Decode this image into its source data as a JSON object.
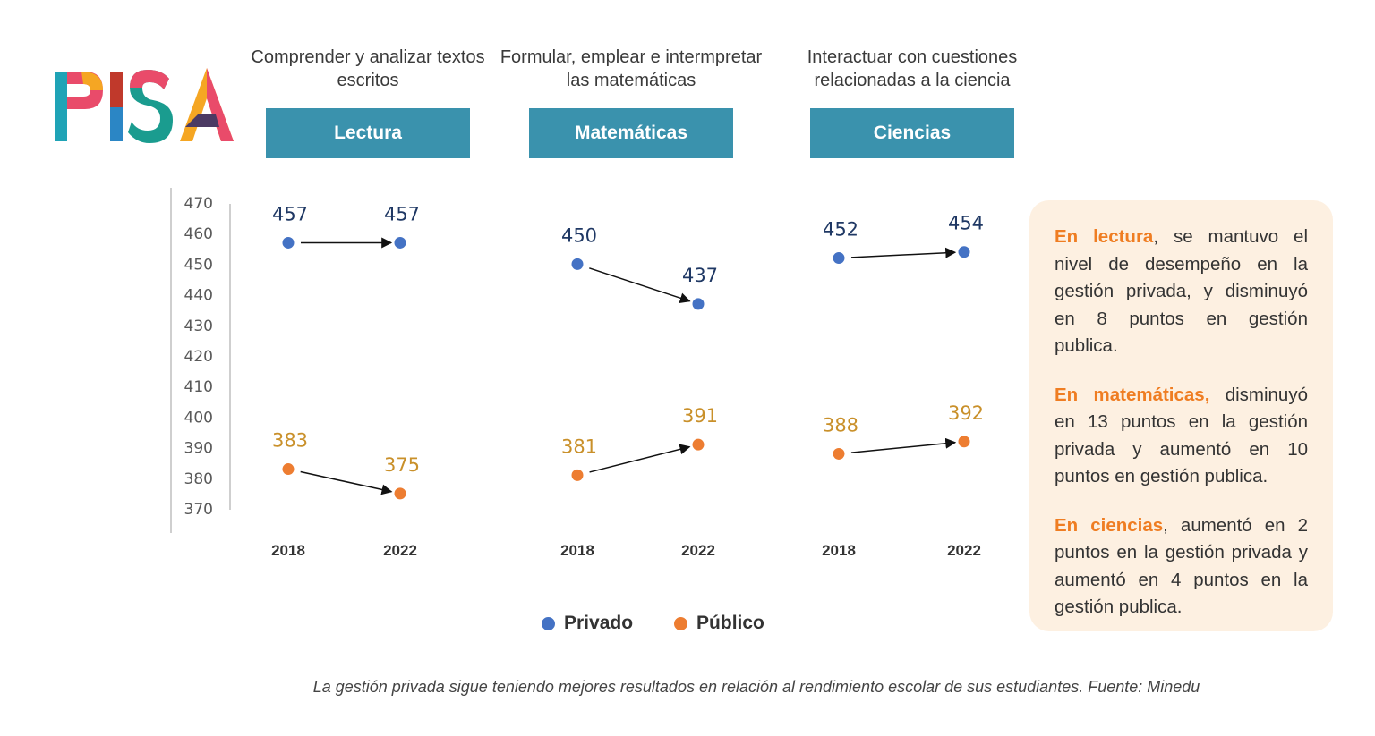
{
  "logo": {
    "text": "PISA"
  },
  "subjects": [
    {
      "description": "Comprender y analizar textos escritos",
      "header": "Lectura"
    },
    {
      "description": "Formular, emplear e intermpretar las matemáticas",
      "header": "Matemáticas"
    },
    {
      "description": "Interactuar con cuestiones relacionadas a la ciencia",
      "header": "Ciencias"
    }
  ],
  "chart_data": {
    "type": "scatter",
    "title": "",
    "xlabel": "",
    "ylabel": "",
    "ylim": [
      365,
      470
    ],
    "yticks": [
      470,
      460,
      450,
      440,
      430,
      420,
      410,
      400,
      390,
      380,
      370
    ],
    "groups": [
      "Lectura",
      "Matemáticas",
      "Ciencias"
    ],
    "x": [
      "2018",
      "2022"
    ],
    "series": [
      {
        "name": "Privado",
        "color": "#4472c4",
        "label_color": "#1f3864",
        "values": [
          [
            457,
            457
          ],
          [
            450,
            437
          ],
          [
            452,
            454
          ]
        ]
      },
      {
        "name": "Público",
        "color": "#ed7d31",
        "label_color": "#c9902a",
        "values": [
          [
            383,
            375
          ],
          [
            381,
            391
          ],
          [
            388,
            392
          ]
        ]
      }
    ],
    "legend_position": "bottom"
  },
  "legend": {
    "items": [
      {
        "label": "Privado",
        "color": "#4472c4"
      },
      {
        "label": "Público",
        "color": "#ed7d31"
      }
    ]
  },
  "notes": [
    {
      "lead": "En lectura",
      "rest": ", se mantuvo el nivel de desempeño en la gestión privada, y disminuyó en 8 puntos en gestión publica."
    },
    {
      "lead": "En matemáticas,",
      "rest": " disminuyó en 13 puntos en la gestión privada y aumentó en 10 puntos en gestión publica."
    },
    {
      "lead": "En ciencias",
      "rest": ", aumentó en 2 puntos en la gestión privada y aumentó en 4 puntos en la gestión publica."
    }
  ],
  "caption": "La gestión privada sigue teniendo mejores resultados en relación al rendimiento escolar de sus estudiantes. Fuente: Minedu",
  "colors": {
    "header_bg": "#3a92ad",
    "note_bg": "#fdf0e1",
    "note_accent": "#ef7d22"
  }
}
